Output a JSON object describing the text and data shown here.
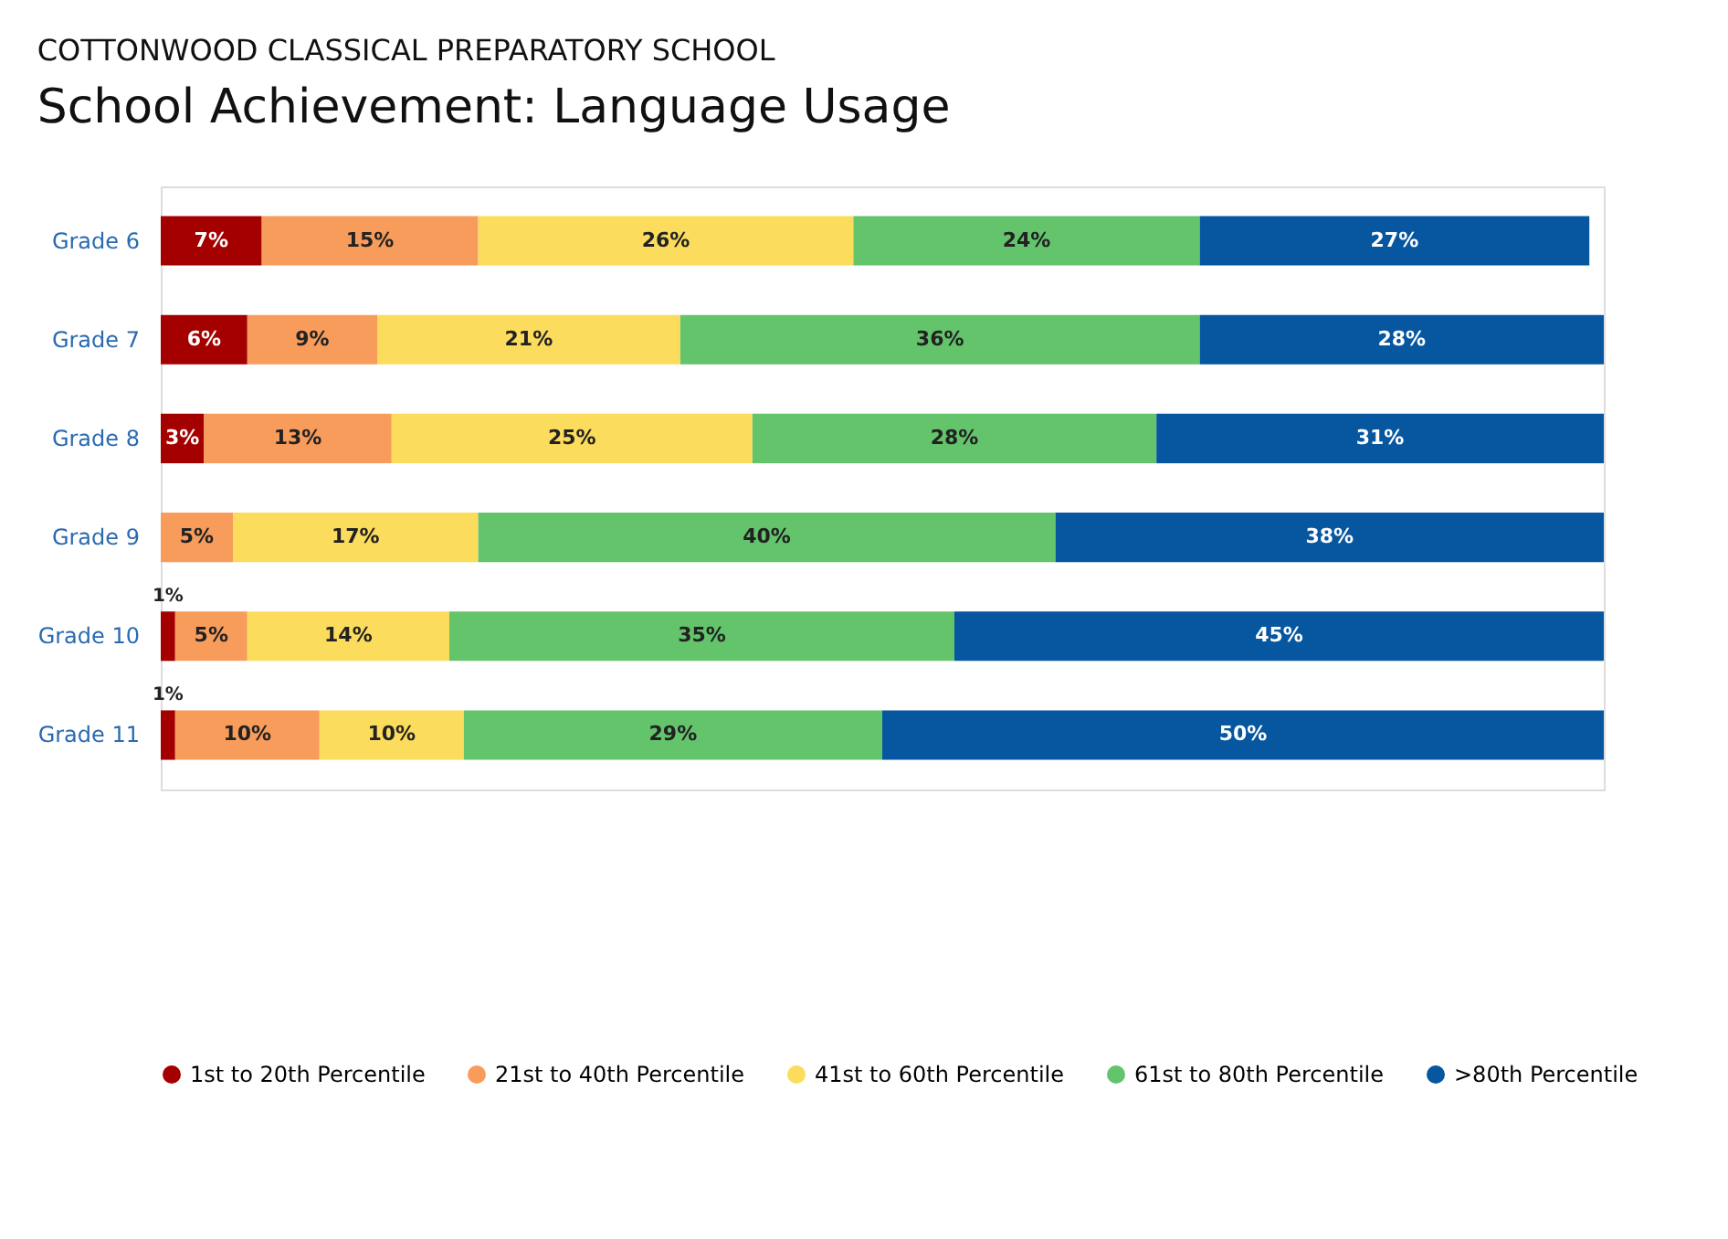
{
  "chart_data": {
    "type": "bar",
    "orientation": "horizontal",
    "stacked": true,
    "title": "School Achievement: Language Usage",
    "subtitle": "COTTONWOOD CLASSICAL PREPARATORY SCHOOL",
    "categories": [
      "Grade 6",
      "Grade 7",
      "Grade 8",
      "Grade 9",
      "Grade 10",
      "Grade 11"
    ],
    "series": [
      {
        "name": "1st to 20th Percentile",
        "color": "#a50000",
        "values": [
          7,
          6,
          3,
          null,
          1,
          1
        ],
        "value_labels": [
          "7%",
          "6%",
          "3%",
          null,
          "1%",
          "1%"
        ]
      },
      {
        "name": "21st to 40th Percentile",
        "color": "#f89c5c",
        "values": [
          15,
          9,
          13,
          5,
          5,
          10
        ],
        "value_labels": [
          "15%",
          "9%",
          "13%",
          "5%",
          "5%",
          "10%"
        ]
      },
      {
        "name": "41st to 60th Percentile",
        "color": "#fcdc5c",
        "values": [
          26,
          21,
          25,
          17,
          14,
          10
        ],
        "value_labels": [
          "26%",
          "21%",
          "25%",
          "17%",
          "14%",
          "10%"
        ]
      },
      {
        "name": "61st to 80th Percentile",
        "color": "#64c46c",
        "values": [
          24,
          36,
          28,
          40,
          35,
          29
        ],
        "value_labels": [
          "24%",
          "36%",
          "28%",
          "40%",
          "35%",
          "29%"
        ]
      },
      {
        "name": ">80th Percentile",
        "color": "#0656a0",
        "values": [
          27,
          28,
          31,
          38,
          45,
          50
        ],
        "value_labels": [
          "27%",
          "28%",
          "31%",
          "38%",
          "45%",
          "50%"
        ]
      }
    ],
    "legend": "bottom",
    "grid": false,
    "tick_labels": "y"
  }
}
